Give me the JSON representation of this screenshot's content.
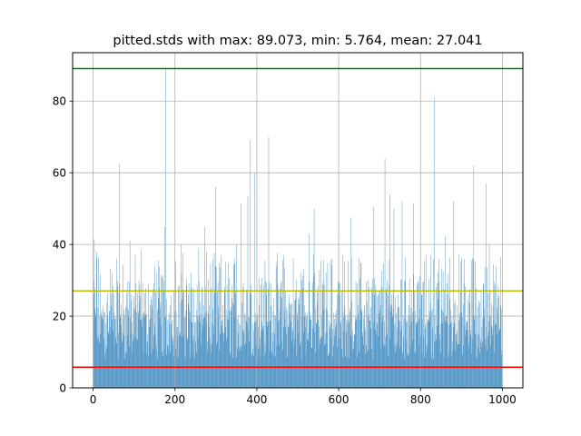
{
  "chart_data": {
    "type": "bar",
    "title": "pitted.stds with max: 89.073, min: 5.764, mean: 27.041",
    "xlabel": "",
    "ylabel": "",
    "xlim": [
      -50,
      1050
    ],
    "ylim": [
      0,
      93.5
    ],
    "xticks": [
      0,
      200,
      400,
      600,
      800,
      1000
    ],
    "yticks": [
      0,
      20,
      40,
      60,
      80
    ],
    "grid": true,
    "bar_color": "#1f77b4",
    "n_bars": 1000,
    "reference_lines": [
      {
        "label": "max",
        "value": 89.073,
        "color": "#008000"
      },
      {
        "label": "mean",
        "value": 27.041,
        "color": "#bfbf00"
      },
      {
        "label": "min",
        "value": 5.764,
        "color": "#ff0000"
      }
    ],
    "stats": {
      "max": 89.073,
      "min": 5.764,
      "mean": 27.041
    },
    "peaks": [
      {
        "x": 0,
        "y": 18
      },
      {
        "x": 3,
        "y": 41.5
      },
      {
        "x": 8,
        "y": 38
      },
      {
        "x": 58,
        "y": 36
      },
      {
        "x": 64,
        "y": 62.5
      },
      {
        "x": 90,
        "y": 41
      },
      {
        "x": 118,
        "y": 38.5
      },
      {
        "x": 175,
        "y": 45
      },
      {
        "x": 178,
        "y": 89.073
      },
      {
        "x": 215,
        "y": 40
      },
      {
        "x": 258,
        "y": 39
      },
      {
        "x": 272,
        "y": 45
      },
      {
        "x": 299,
        "y": 56
      },
      {
        "x": 350,
        "y": 40
      },
      {
        "x": 362,
        "y": 51.5
      },
      {
        "x": 378,
        "y": 53.5
      },
      {
        "x": 383,
        "y": 69
      },
      {
        "x": 395,
        "y": 60
      },
      {
        "x": 429,
        "y": 70
      },
      {
        "x": 466,
        "y": 37
      },
      {
        "x": 527,
        "y": 43
      },
      {
        "x": 540,
        "y": 50
      },
      {
        "x": 584,
        "y": 36
      },
      {
        "x": 600,
        "y": 43.5
      },
      {
        "x": 630,
        "y": 47.5
      },
      {
        "x": 685,
        "y": 50.5
      },
      {
        "x": 713,
        "y": 64
      },
      {
        "x": 725,
        "y": 54
      },
      {
        "x": 735,
        "y": 50
      },
      {
        "x": 755,
        "y": 52
      },
      {
        "x": 783,
        "y": 51.5
      },
      {
        "x": 825,
        "y": 37
      },
      {
        "x": 833,
        "y": 81
      },
      {
        "x": 860,
        "y": 42.5
      },
      {
        "x": 880,
        "y": 52
      },
      {
        "x": 930,
        "y": 62
      },
      {
        "x": 960,
        "y": 57
      },
      {
        "x": 968,
        "y": 40
      },
      {
        "x": 995,
        "y": 36.5
      }
    ]
  }
}
